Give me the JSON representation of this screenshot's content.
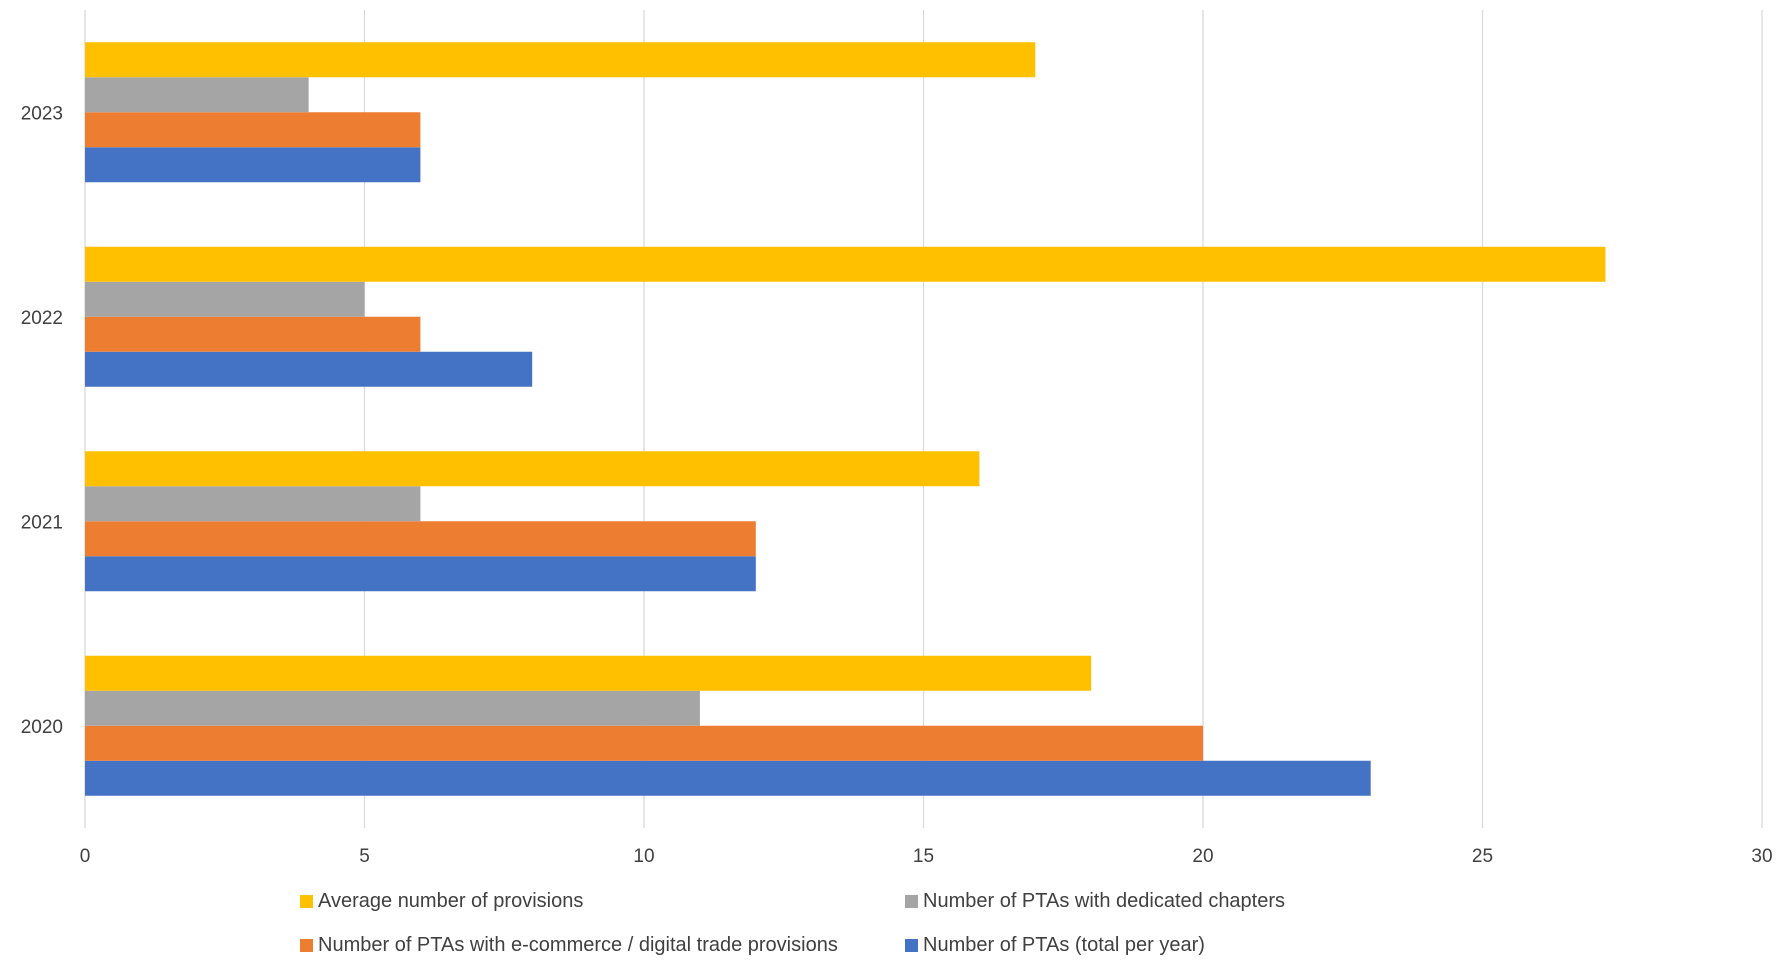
{
  "chart_data": {
    "type": "bar",
    "orientation": "horizontal",
    "categories": [
      "2020",
      "2021",
      "2022",
      "2023"
    ],
    "series": [
      {
        "name": "Number of PTAs (total per year)",
        "values": [
          23,
          12,
          8,
          6
        ],
        "color": "#4472C4"
      },
      {
        "name": "Number of PTAs with e-commerce / digital trade provisions",
        "values": [
          20,
          12,
          6,
          6
        ],
        "color": "#ED7D31"
      },
      {
        "name": "Number of PTAs with dedicated chapters",
        "values": [
          11,
          6,
          5,
          4
        ],
        "color": "#A5A5A5"
      },
      {
        "name": "Average number of provisions",
        "values": [
          18,
          16,
          27.2,
          17
        ],
        "color": "#FFC000"
      }
    ],
    "x_ticks": [
      "0",
      "5",
      "10",
      "15",
      "20",
      "25",
      "30"
    ],
    "xlim": [
      0,
      30
    ],
    "grid": "vertical",
    "legend_position": "bottom"
  }
}
